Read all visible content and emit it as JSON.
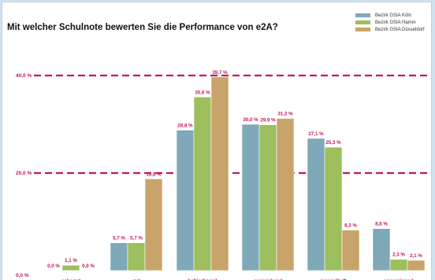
{
  "chart_data": {
    "type": "bar",
    "title": "Mit welcher Schulnote bewerten Sie die Performance von e2A?",
    "xlabel": "",
    "ylabel": "",
    "ylim": [
      0,
      42
    ],
    "y_ticks": [
      {
        "value": 0,
        "label": "0,0 %"
      },
      {
        "value": 20,
        "label": "20,0 %"
      },
      {
        "value": 40,
        "label": "40,0 %"
      }
    ],
    "categories": [
      "sehr gut",
      "gut",
      "befriedigend",
      "ausreichend",
      "mangelhaft",
      "ungenügend"
    ],
    "legend_position": "top-right",
    "grid": "dashed reference lines at 20 % and 40 %",
    "series": [
      {
        "name": "Bezirk GSIA Köln",
        "color": "#7fa8b8",
        "values": [
          0.0,
          5.7,
          28.8,
          30.0,
          27.1,
          8.6
        ],
        "labels": [
          "0,0 %",
          "5,7 %",
          "28,8 %",
          "30,0 %",
          "27,1 %",
          "8,6 %"
        ]
      },
      {
        "name": "Bezirk GSIA Hamm",
        "color": "#9dbf5e",
        "values": [
          1.1,
          5.7,
          35.6,
          29.9,
          25.3,
          2.3
        ],
        "labels": [
          "1,1 %",
          "5,7 %",
          "35,6 %",
          "29,9 %",
          "25,3 %",
          "2,3 %"
        ]
      },
      {
        "name": "Bezirk GSIA Düsseldorf",
        "color": "#c9a46a",
        "values": [
          0.0,
          18.8,
          39.7,
          31.2,
          8.3,
          2.1
        ],
        "labels": [
          "0,0 %",
          "18,8 %",
          "39,7 %",
          "31,2 %",
          "8,3 %",
          "2,1 %"
        ]
      }
    ],
    "reference_line_color": "#c2185b"
  }
}
